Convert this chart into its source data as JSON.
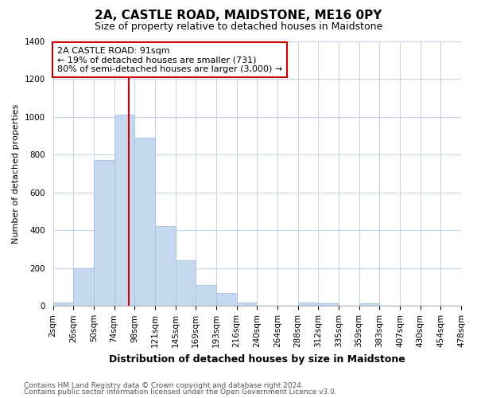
{
  "title": "2A, CASTLE ROAD, MAIDSTONE, ME16 0PY",
  "subtitle": "Size of property relative to detached houses in Maidstone",
  "xlabel": "Distribution of detached houses by size in Maidstone",
  "ylabel": "Number of detached properties",
  "footer_line1": "Contains HM Land Registry data © Crown copyright and database right 2024.",
  "footer_line2": "Contains public sector information licensed under the Open Government Licence v3.0.",
  "bin_labels": [
    "2sqm",
    "26sqm",
    "50sqm",
    "74sqm",
    "98sqm",
    "121sqm",
    "145sqm",
    "169sqm",
    "193sqm",
    "216sqm",
    "240sqm",
    "264sqm",
    "288sqm",
    "312sqm",
    "335sqm",
    "359sqm",
    "383sqm",
    "407sqm",
    "430sqm",
    "454sqm",
    "478sqm"
  ],
  "bar_values": [
    20,
    200,
    770,
    1010,
    890,
    420,
    240,
    110,
    70,
    20,
    0,
    0,
    20,
    15,
    0,
    15,
    0,
    0,
    0,
    0
  ],
  "bar_color": "#c5d8f0",
  "bar_edge_color": "#a8c4e0",
  "marker_line_color": "#cc0000",
  "annotation_title": "2A CASTLE ROAD: 91sqm",
  "annotation_line1": "← 19% of detached houses are smaller (731)",
  "annotation_line2": "80% of semi-detached houses are larger (3,000) →",
  "annotation_box_color": "#ffffff",
  "annotation_box_edge": "#cc0000",
  "ylim": [
    0,
    1400
  ],
  "yticks": [
    0,
    200,
    400,
    600,
    800,
    1000,
    1200,
    1400
  ],
  "background_color": "#ffffff",
  "grid_color": "#c8d4e8",
  "title_fontsize": 11,
  "subtitle_fontsize": 9,
  "ylabel_fontsize": 8,
  "xlabel_fontsize": 9,
  "tick_fontsize": 7.5,
  "footer_fontsize": 6.5,
  "footer_color": "#555555"
}
